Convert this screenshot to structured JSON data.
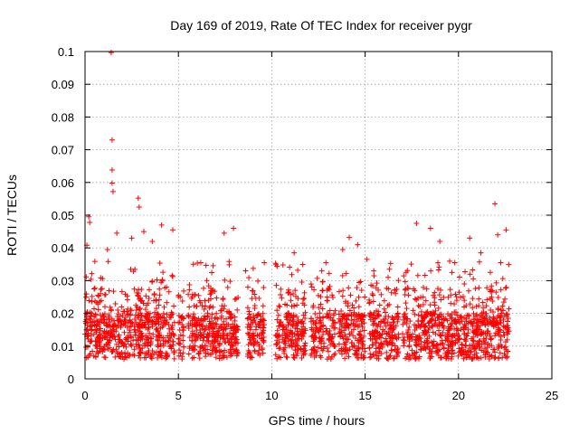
{
  "chart_data": {
    "type": "scatter",
    "title": "Day 169 of 2019, Rate Of TEC Index for receiver pygr",
    "xlabel": "GPS time / hours",
    "ylabel": "ROTI / TECUs",
    "xlim": [
      0,
      25
    ],
    "ylim": [
      0,
      0.1
    ],
    "x_ticks": [
      "0",
      "5",
      "10",
      "15",
      "20",
      "25"
    ],
    "y_ticks": [
      "0",
      "0.01",
      "0.02",
      "0.03",
      "0.04",
      "0.05",
      "0.06",
      "0.07",
      "0.08",
      "0.09",
      "0.1"
    ],
    "grid": true,
    "marker": "+",
    "point_color": "#ff0000",
    "data_spans": [
      [
        0.0,
        4.8
      ],
      [
        5.0,
        5.3
      ],
      [
        5.5,
        8.2
      ],
      [
        8.7,
        9.6
      ],
      [
        10.2,
        11.8
      ],
      [
        12.1,
        12.8
      ],
      [
        12.9,
        13.4
      ],
      [
        13.6,
        15.0
      ],
      [
        15.2,
        16.8
      ],
      [
        17.0,
        22.7
      ]
    ],
    "points": [
      {
        "x": 1.4,
        "y": 0.0997
      },
      {
        "x": 1.45,
        "y": 0.073
      },
      {
        "x": 1.45,
        "y": 0.0638
      },
      {
        "x": 1.45,
        "y": 0.0598
      },
      {
        "x": 1.5,
        "y": 0.0572
      },
      {
        "x": 2.85,
        "y": 0.0552
      },
      {
        "x": 2.9,
        "y": 0.0525
      },
      {
        "x": 21.95,
        "y": 0.0535
      },
      {
        "x": 0.2,
        "y": 0.0495
      },
      {
        "x": 0.25,
        "y": 0.0478
      },
      {
        "x": 1.7,
        "y": 0.0445
      },
      {
        "x": 2.5,
        "y": 0.043
      },
      {
        "x": 3.15,
        "y": 0.045
      },
      {
        "x": 4.1,
        "y": 0.047
      },
      {
        "x": 4.7,
        "y": 0.0455
      },
      {
        "x": 7.45,
        "y": 0.0445
      },
      {
        "x": 7.95,
        "y": 0.046
      },
      {
        "x": 14.15,
        "y": 0.0432
      },
      {
        "x": 14.6,
        "y": 0.041
      },
      {
        "x": 17.75,
        "y": 0.0475
      },
      {
        "x": 18.5,
        "y": 0.046
      },
      {
        "x": 20.6,
        "y": 0.043
      },
      {
        "x": 22.1,
        "y": 0.044
      },
      {
        "x": 22.55,
        "y": 0.0455
      },
      {
        "x": 0.1,
        "y": 0.0408
      },
      {
        "x": 1.2,
        "y": 0.0395
      },
      {
        "x": 3.6,
        "y": 0.042
      },
      {
        "x": 5.8,
        "y": 0.035
      },
      {
        "x": 6.2,
        "y": 0.0355
      },
      {
        "x": 8.6,
        "y": 0.033
      },
      {
        "x": 9.6,
        "y": 0.0355
      },
      {
        "x": 10.6,
        "y": 0.0348
      },
      {
        "x": 11.2,
        "y": 0.0385
      },
      {
        "x": 12.9,
        "y": 0.0355
      },
      {
        "x": 13.8,
        "y": 0.0395
      },
      {
        "x": 15.1,
        "y": 0.0365
      },
      {
        "x": 16.3,
        "y": 0.0335
      },
      {
        "x": 19.0,
        "y": 0.042
      },
      {
        "x": 19.8,
        "y": 0.0355
      },
      {
        "x": 21.2,
        "y": 0.0385
      }
    ]
  }
}
